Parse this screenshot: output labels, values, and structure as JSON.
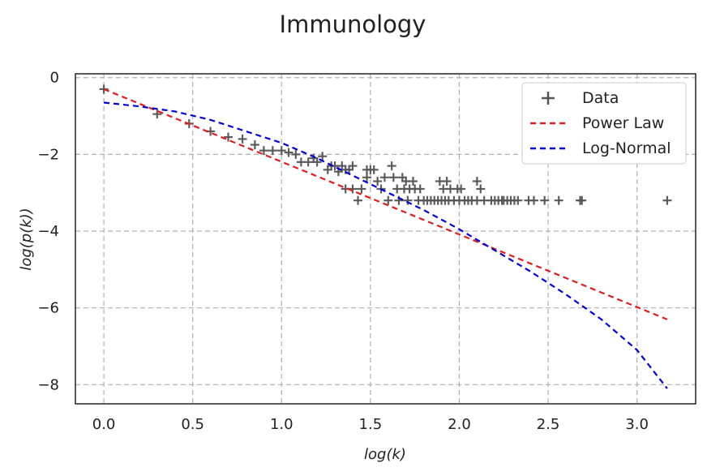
{
  "chart_data": {
    "type": "scatter",
    "title": "Immunology",
    "xlabel": "log(k)",
    "ylabel": "log(p(k))",
    "xlim": [
      -0.16,
      3.33
    ],
    "ylim": [
      -8.5,
      0.1
    ],
    "xticks": [
      "0.0",
      "0.5",
      "1.0",
      "1.5",
      "2.0",
      "2.5",
      "3.0"
    ],
    "xtick_values": [
      0.0,
      0.5,
      1.0,
      1.5,
      2.0,
      2.5,
      3.0
    ],
    "yticks": [
      "0",
      "−2",
      "−4",
      "−6",
      "−8"
    ],
    "ytick_values": [
      0,
      -2,
      -4,
      -6,
      -8
    ],
    "grid": true,
    "legend_position": "top-right",
    "series": [
      {
        "name": "Data",
        "kind": "scatter",
        "marker": "plus",
        "color": "#555555",
        "points": [
          [
            0.0,
            -0.3
          ],
          [
            0.3,
            -0.95
          ],
          [
            0.48,
            -1.2
          ],
          [
            0.6,
            -1.4
          ],
          [
            0.7,
            -1.55
          ],
          [
            0.78,
            -1.6
          ],
          [
            0.85,
            -1.75
          ],
          [
            0.9,
            -1.9
          ],
          [
            0.95,
            -1.9
          ],
          [
            1.0,
            -1.9
          ],
          [
            1.04,
            -1.95
          ],
          [
            1.08,
            -2.0
          ],
          [
            1.11,
            -2.2
          ],
          [
            1.15,
            -2.2
          ],
          [
            1.18,
            -2.1
          ],
          [
            1.2,
            -2.2
          ],
          [
            1.23,
            -2.05
          ],
          [
            1.26,
            -2.4
          ],
          [
            1.28,
            -2.3
          ],
          [
            1.3,
            -2.3
          ],
          [
            1.32,
            -2.45
          ],
          [
            1.34,
            -2.3
          ],
          [
            1.36,
            -2.4
          ],
          [
            1.36,
            -2.9
          ],
          [
            1.38,
            -2.4
          ],
          [
            1.4,
            -2.3
          ],
          [
            1.4,
            -2.9
          ],
          [
            1.43,
            -3.2
          ],
          [
            1.45,
            -2.9
          ],
          [
            1.48,
            -2.4
          ],
          [
            1.48,
            -2.6
          ],
          [
            1.5,
            -2.4
          ],
          [
            1.52,
            -2.4
          ],
          [
            1.54,
            -2.7
          ],
          [
            1.56,
            -2.9
          ],
          [
            1.58,
            -2.6
          ],
          [
            1.6,
            -3.2
          ],
          [
            1.62,
            -2.3
          ],
          [
            1.63,
            -2.6
          ],
          [
            1.65,
            -2.9
          ],
          [
            1.66,
            -3.2
          ],
          [
            1.68,
            -2.6
          ],
          [
            1.69,
            -2.9
          ],
          [
            1.7,
            -2.7
          ],
          [
            1.71,
            -3.2
          ],
          [
            1.72,
            -2.9
          ],
          [
            1.74,
            -2.7
          ],
          [
            1.75,
            -2.9
          ],
          [
            1.77,
            -3.2
          ],
          [
            1.78,
            -2.9
          ],
          [
            1.8,
            -3.2
          ],
          [
            1.82,
            -3.2
          ],
          [
            1.84,
            -3.2
          ],
          [
            1.86,
            -3.2
          ],
          [
            1.88,
            -3.2
          ],
          [
            1.89,
            -2.7
          ],
          [
            1.9,
            -3.2
          ],
          [
            1.91,
            -2.9
          ],
          [
            1.92,
            -3.2
          ],
          [
            1.93,
            -2.7
          ],
          [
            1.94,
            -3.2
          ],
          [
            1.95,
            -2.9
          ],
          [
            1.97,
            -3.2
          ],
          [
            1.99,
            -2.9
          ],
          [
            2.0,
            -3.2
          ],
          [
            2.01,
            -2.9
          ],
          [
            2.03,
            -3.2
          ],
          [
            2.05,
            -3.2
          ],
          [
            2.07,
            -3.2
          ],
          [
            2.1,
            -2.7
          ],
          [
            2.1,
            -3.2
          ],
          [
            2.12,
            -2.9
          ],
          [
            2.14,
            -3.2
          ],
          [
            2.18,
            -3.2
          ],
          [
            2.2,
            -3.2
          ],
          [
            2.22,
            -3.2
          ],
          [
            2.24,
            -3.2
          ],
          [
            2.25,
            -3.2
          ],
          [
            2.27,
            -3.2
          ],
          [
            2.29,
            -3.2
          ],
          [
            2.31,
            -3.2
          ],
          [
            2.33,
            -3.2
          ],
          [
            2.39,
            -3.2
          ],
          [
            2.42,
            -3.2
          ],
          [
            2.48,
            -3.2
          ],
          [
            2.56,
            -3.2
          ],
          [
            2.68,
            -3.2
          ],
          [
            2.69,
            -3.2
          ],
          [
            3.17,
            -3.2
          ]
        ]
      },
      {
        "name": "Power Law",
        "kind": "line",
        "dashed": true,
        "color": "#e41a1c",
        "points": [
          [
            0.0,
            -0.3
          ],
          [
            3.17,
            -6.3
          ]
        ]
      },
      {
        "name": "Log-Normal",
        "kind": "line",
        "dashed": true,
        "color": "#0000dd",
        "points": [
          [
            0.0,
            -0.65
          ],
          [
            0.2,
            -0.75
          ],
          [
            0.4,
            -0.88
          ],
          [
            0.6,
            -1.1
          ],
          [
            0.8,
            -1.4
          ],
          [
            1.0,
            -1.7
          ],
          [
            1.2,
            -2.1
          ],
          [
            1.4,
            -2.55
          ],
          [
            1.6,
            -3.0
          ],
          [
            1.8,
            -3.45
          ],
          [
            2.0,
            -3.95
          ],
          [
            2.2,
            -4.5
          ],
          [
            2.4,
            -5.05
          ],
          [
            2.6,
            -5.65
          ],
          [
            2.8,
            -6.3
          ],
          [
            3.0,
            -7.1
          ],
          [
            3.17,
            -8.1
          ]
        ]
      }
    ]
  }
}
